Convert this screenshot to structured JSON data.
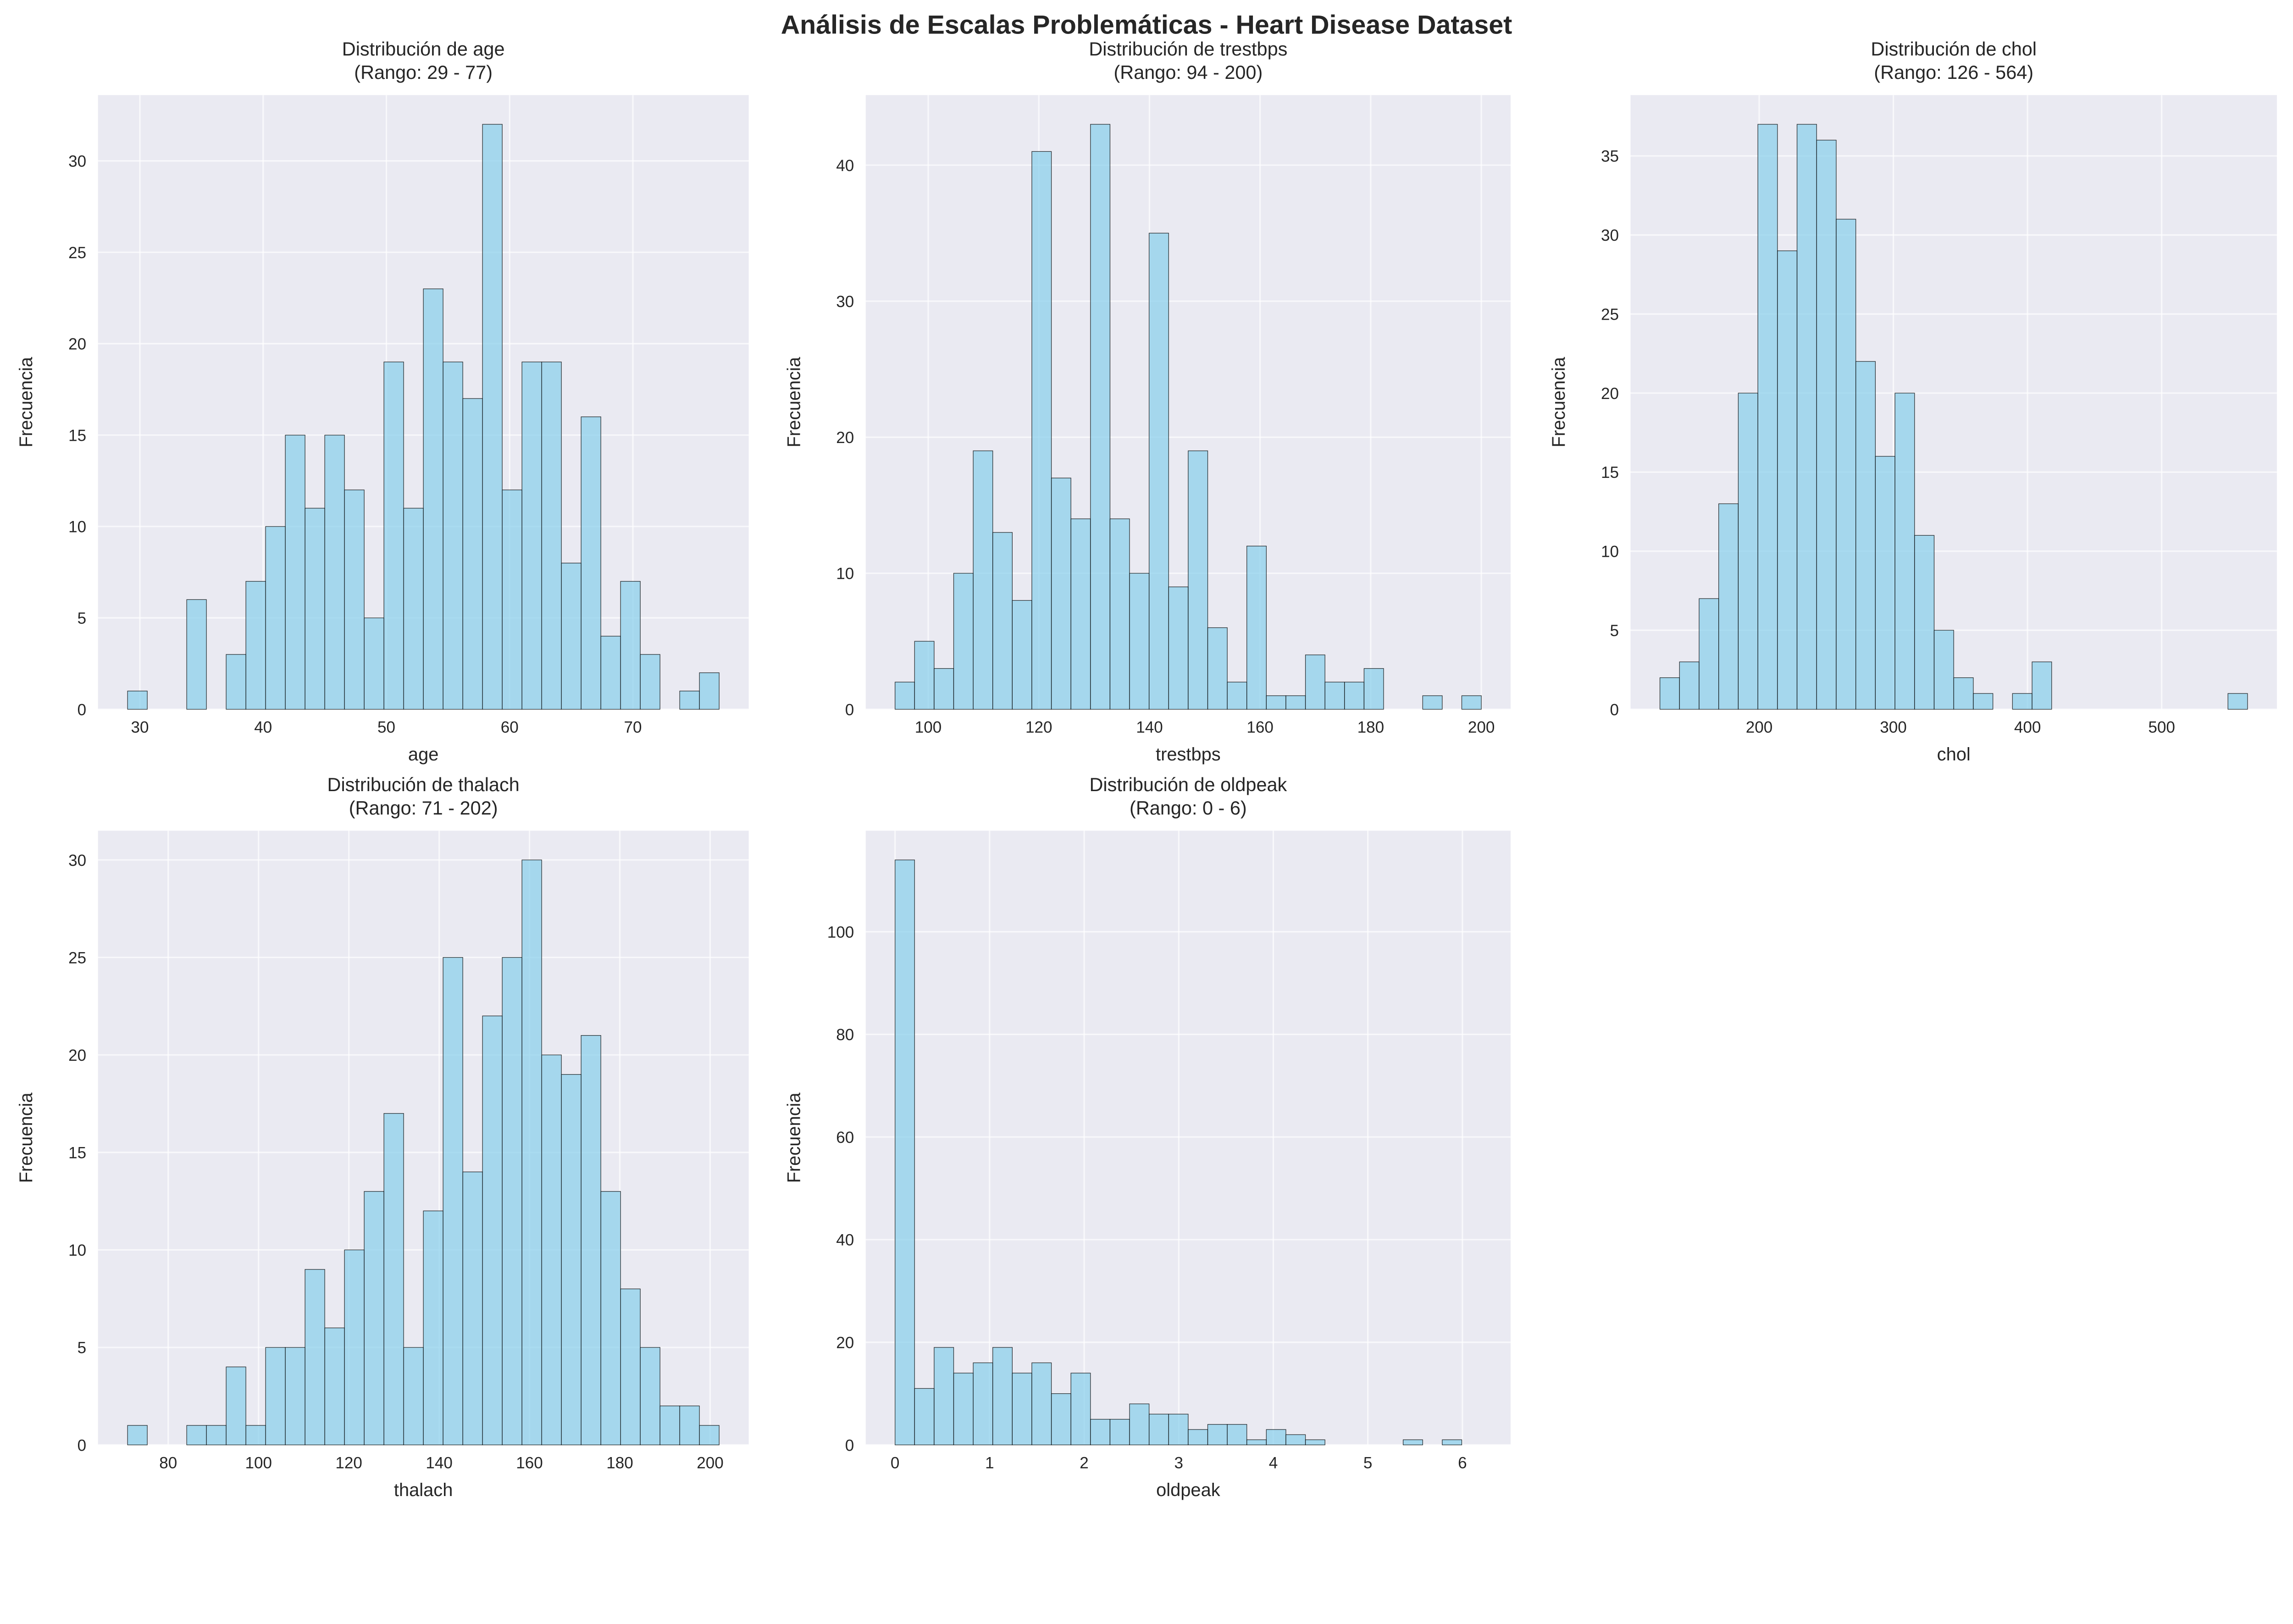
{
  "title": "Análisis de Escalas Problemáticas - Heart Disease Dataset",
  "colors": {
    "bar": "#87CEEB",
    "bar_edge": "#000000",
    "axes_bg": "#EAEAF2",
    "grid": "#FFFFFF"
  },
  "chart_data": [
    {
      "type": "bar",
      "title_line1": "Distribución de age",
      "title_line2": "(Rango: 29 - 77)",
      "xlabel": "age",
      "ylabel": "Frecuencia",
      "bin_range": [
        29,
        77
      ],
      "values": [
        1,
        0,
        0,
        6,
        0,
        3,
        7,
        10,
        15,
        11,
        15,
        12,
        5,
        19,
        11,
        23,
        19,
        17,
        32,
        12,
        19,
        19,
        8,
        16,
        4,
        7,
        3,
        0,
        1,
        2
      ],
      "xlim": [
        26.6,
        79.4
      ],
      "ylim": [
        0,
        33.6
      ],
      "xticks": [
        30,
        40,
        50,
        60,
        70
      ],
      "yticks": [
        0,
        5,
        10,
        15,
        20,
        25,
        30
      ],
      "grid": true
    },
    {
      "type": "bar",
      "title_line1": "Distribución de trestbps",
      "title_line2": "(Rango: 94 - 200)",
      "xlabel": "trestbps",
      "ylabel": "Frecuencia",
      "bin_range": [
        94,
        200
      ],
      "values": [
        2,
        5,
        3,
        10,
        19,
        13,
        8,
        41,
        17,
        14,
        43,
        14,
        10,
        35,
        9,
        19,
        6,
        2,
        12,
        1,
        1,
        4,
        2,
        2,
        3,
        0,
        0,
        1,
        0,
        1
      ],
      "xlim": [
        88.7,
        205.3
      ],
      "ylim": [
        0,
        45.15
      ],
      "xticks": [
        100,
        120,
        140,
        160,
        180,
        200
      ],
      "yticks": [
        0,
        10,
        20,
        30,
        40
      ],
      "grid": true
    },
    {
      "type": "bar",
      "title_line1": "Distribución de chol",
      "title_line2": "(Rango: 126 - 564)",
      "xlabel": "chol",
      "ylabel": "Frecuencia",
      "bin_range": [
        126,
        564
      ],
      "values": [
        2,
        3,
        7,
        13,
        20,
        37,
        29,
        37,
        36,
        31,
        22,
        16,
        20,
        11,
        5,
        2,
        1,
        0,
        1,
        3,
        0,
        0,
        0,
        0,
        0,
        0,
        0,
        0,
        0,
        1
      ],
      "xlim": [
        104.1,
        585.9
      ],
      "ylim": [
        0,
        38.85
      ],
      "xticks": [
        200,
        300,
        400,
        500
      ],
      "yticks": [
        0,
        5,
        10,
        15,
        20,
        25,
        30,
        35
      ],
      "grid": true
    },
    {
      "type": "bar",
      "title_line1": "Distribución de thalach",
      "title_line2": "(Rango: 71 - 202)",
      "xlabel": "thalach",
      "ylabel": "Frecuencia",
      "bin_range": [
        71,
        202
      ],
      "values": [
        1,
        0,
        0,
        1,
        1,
        4,
        1,
        5,
        5,
        9,
        6,
        10,
        13,
        17,
        5,
        12,
        25,
        14,
        22,
        25,
        30,
        20,
        19,
        21,
        13,
        8,
        5,
        2,
        2,
        1
      ],
      "xlim": [
        64.45,
        208.55
      ],
      "ylim": [
        0,
        31.5
      ],
      "xticks": [
        80,
        100,
        120,
        140,
        160,
        180,
        200
      ],
      "yticks": [
        0,
        5,
        10,
        15,
        20,
        25,
        30
      ],
      "grid": true
    },
    {
      "type": "bar",
      "title_line1": "Distribución de oldpeak",
      "title_line2": "(Rango: 0 - 6)",
      "xlabel": "oldpeak",
      "ylabel": "Frecuencia",
      "bin_range": [
        0,
        6.2
      ],
      "values": [
        114,
        11,
        19,
        14,
        16,
        19,
        14,
        16,
        10,
        14,
        5,
        5,
        8,
        6,
        6,
        3,
        4,
        4,
        1,
        3,
        2,
        1,
        0,
        0,
        0,
        0,
        1,
        0,
        1,
        0
      ],
      "xlim": [
        -0.31,
        6.51
      ],
      "ylim": [
        0,
        119.7
      ],
      "xticks": [
        0,
        1,
        2,
        3,
        4,
        5,
        6
      ],
      "yticks": [
        0,
        20,
        40,
        60,
        80,
        100
      ],
      "grid": true
    }
  ]
}
